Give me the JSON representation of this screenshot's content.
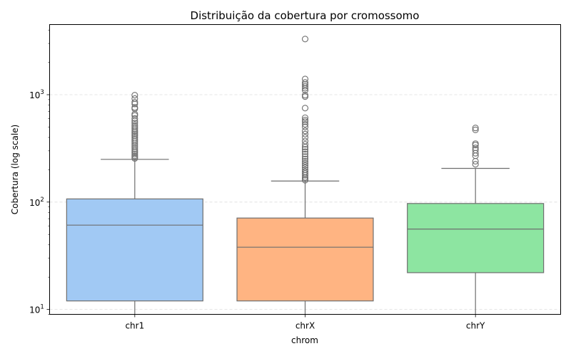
{
  "chart_data": {
    "type": "box",
    "title": "Distribuição da cobertura por cromossomo",
    "xlabel": "chrom",
    "ylabel": "Cobertura (log scale)",
    "y_scale": "log",
    "ylim": [
      9,
      4500
    ],
    "y_ticks": [
      {
        "value": 10,
        "base": "10",
        "exp": "1"
      },
      {
        "value": 100,
        "base": "10",
        "exp": "2"
      },
      {
        "value": 1000,
        "base": "10",
        "exp": "3"
      }
    ],
    "grid": "y dashed",
    "categories": [
      "chr1",
      "chrX",
      "chrY"
    ],
    "series": [
      {
        "category": "chr1",
        "color": "#a1c9f4",
        "whisker_low": 9,
        "q1": 12,
        "median": 61,
        "q3": 107,
        "whisker_high": 250,
        "outliers": [
          255,
          262,
          270,
          280,
          290,
          300,
          312,
          325,
          340,
          355,
          370,
          385,
          400,
          415,
          430,
          445,
          460,
          480,
          500,
          520,
          545,
          570,
          600,
          640,
          660,
          740,
          760,
          820,
          850,
          920,
          990
        ]
      },
      {
        "category": "chrX",
        "color": "#ffb482",
        "whisker_low": 9,
        "q1": 12,
        "median": 38,
        "q3": 71,
        "whisker_high": 157,
        "outliers": [
          160,
          165,
          170,
          178,
          185,
          192,
          200,
          210,
          220,
          230,
          240,
          252,
          265,
          280,
          295,
          310,
          325,
          345,
          370,
          400,
          430,
          460,
          500,
          530,
          560,
          580,
          610,
          750,
          960,
          990,
          1100,
          1150,
          1200,
          1250,
          1300,
          1400,
          3300
        ]
      },
      {
        "category": "chrY",
        "color": "#8de5a1",
        "whisker_low": 9,
        "q1": 22,
        "median": 56,
        "q3": 97,
        "whisker_high": 206,
        "outliers": [
          225,
          240,
          270,
          285,
          305,
          320,
          340,
          350,
          470,
          490
        ]
      }
    ]
  }
}
